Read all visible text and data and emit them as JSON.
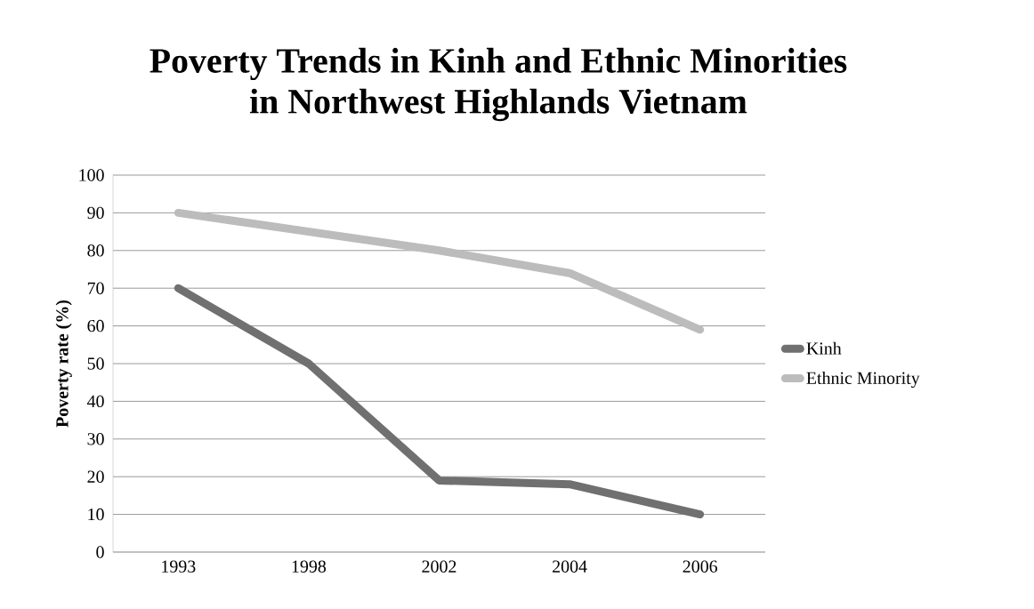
{
  "chart_data": {
    "type": "line",
    "title": "Poverty Trends in Kinh and Ethnic Minorities\nin Northwest Highlands  Vietnam",
    "ylabel": "Poverty rate (%)",
    "categories": [
      "1993",
      "1998",
      "2002",
      "2004",
      "2006"
    ],
    "series": [
      {
        "name": "Kinh",
        "color": "#707070",
        "values": [
          70,
          50,
          19,
          18,
          10
        ]
      },
      {
        "name": "Ethnic Minority",
        "color": "#bcbcbc",
        "values": [
          90,
          85,
          80,
          74,
          59
        ]
      }
    ],
    "ylim": [
      0,
      100
    ],
    "yticks": [
      0,
      10,
      20,
      30,
      40,
      50,
      60,
      70,
      80,
      90,
      100
    ],
    "grid": "y",
    "legend": "right",
    "marker": "none",
    "line_style": "solid"
  }
}
